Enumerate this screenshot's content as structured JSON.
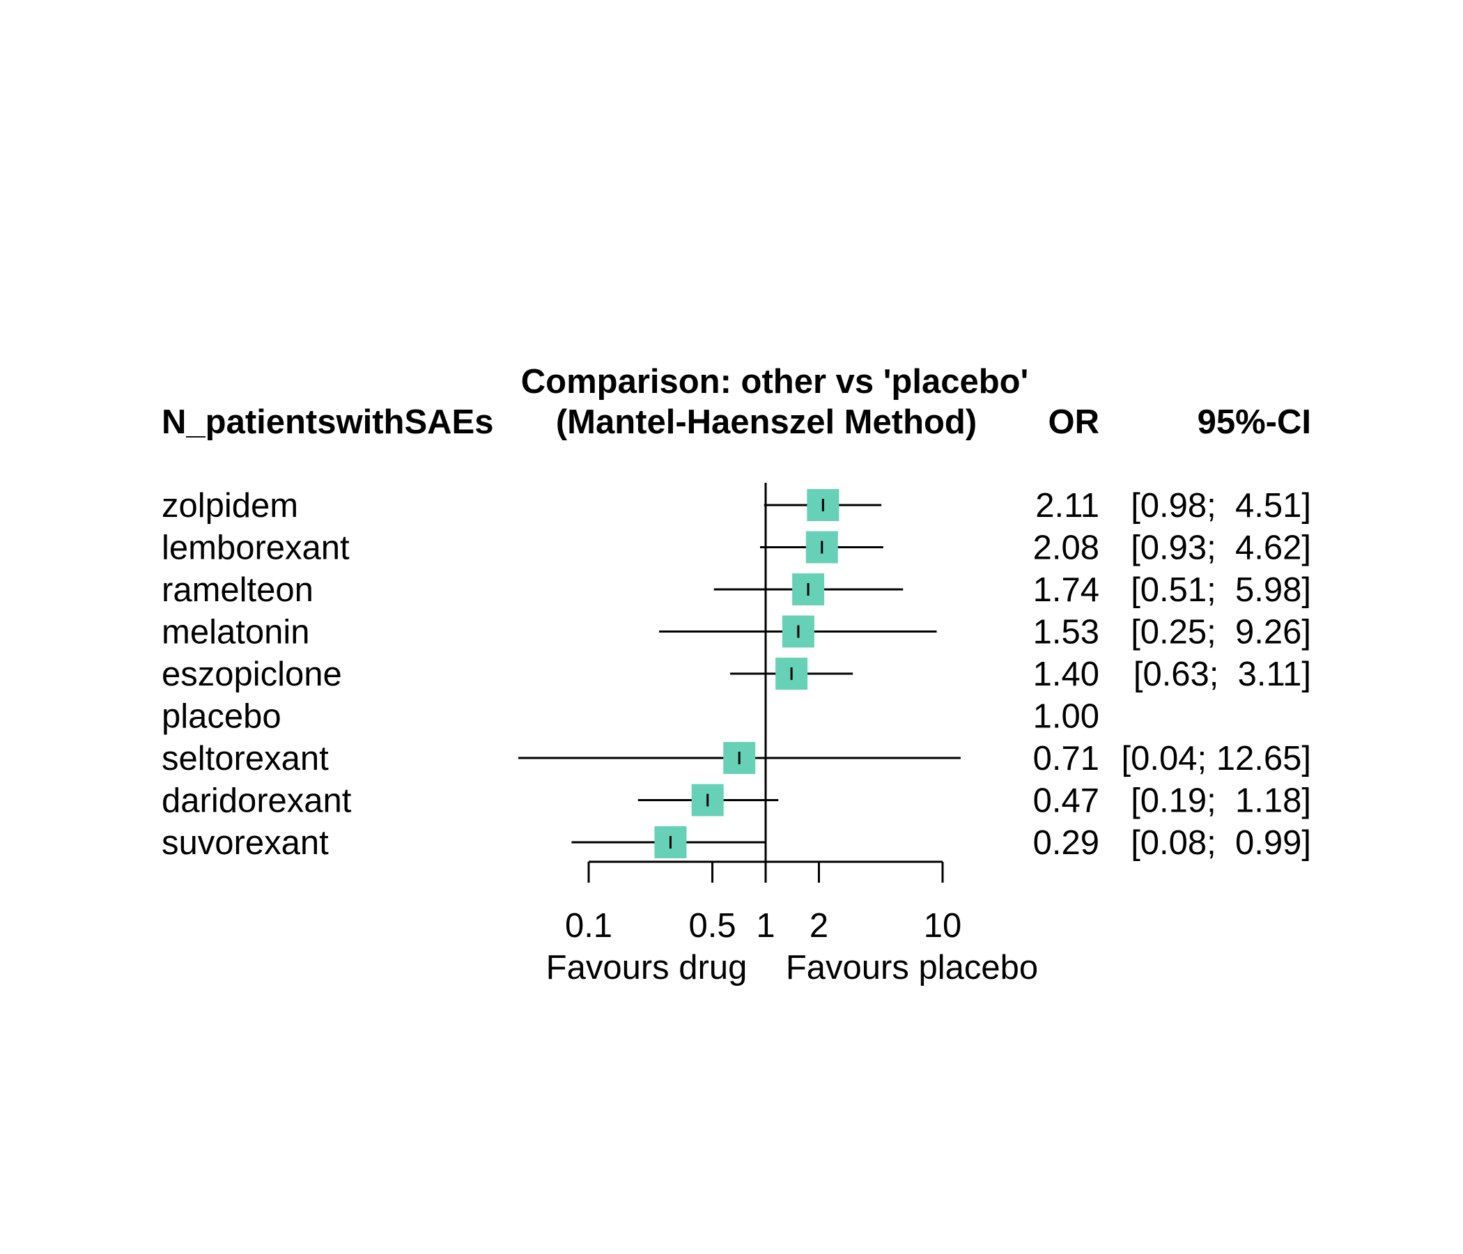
{
  "chart_data": {
    "type": "forest",
    "title": "Comparison: other vs 'placebo'",
    "subtitle": "(Mantel-Haenszel Method)",
    "column_headers": {
      "treatment": "N_patientswithSAEs",
      "estimate": "OR",
      "ci": "95%-CI"
    },
    "x_scale": "log",
    "xlim": [
      0.1,
      10
    ],
    "ticks": [
      {
        "value": 0.1,
        "label": "0.1"
      },
      {
        "value": 0.5,
        "label": "0.5"
      },
      {
        "value": 1,
        "label": "1"
      },
      {
        "value": 2,
        "label": "2"
      },
      {
        "value": 10,
        "label": "10"
      }
    ],
    "reference_line": 1,
    "favours_left": "Favours drug",
    "favours_right": "Favours placebo",
    "marker_color": "#66d1b6",
    "rows": [
      {
        "treatment": "zolpidem",
        "or": 2.11,
        "lower": 0.98,
        "upper": 4.51,
        "or_text": "2.11",
        "ci_text": "[0.98;  4.51]"
      },
      {
        "treatment": "lemborexant",
        "or": 2.08,
        "lower": 0.93,
        "upper": 4.62,
        "or_text": "2.08",
        "ci_text": "[0.93;  4.62]"
      },
      {
        "treatment": "ramelteon",
        "or": 1.74,
        "lower": 0.51,
        "upper": 5.98,
        "or_text": "1.74",
        "ci_text": "[0.51;  5.98]"
      },
      {
        "treatment": "melatonin",
        "or": 1.53,
        "lower": 0.25,
        "upper": 9.26,
        "or_text": "1.53",
        "ci_text": "[0.25;  9.26]"
      },
      {
        "treatment": "eszopiclone",
        "or": 1.4,
        "lower": 0.63,
        "upper": 3.11,
        "or_text": "1.40",
        "ci_text": "[0.63;  3.11]"
      },
      {
        "treatment": "placebo",
        "or": 1.0,
        "lower": null,
        "upper": null,
        "or_text": "1.00",
        "ci_text": ""
      },
      {
        "treatment": "seltorexant",
        "or": 0.71,
        "lower": 0.04,
        "upper": 12.65,
        "or_text": "0.71",
        "ci_text": "[0.04; 12.65]"
      },
      {
        "treatment": "daridorexant",
        "or": 0.47,
        "lower": 0.19,
        "upper": 1.18,
        "or_text": "0.47",
        "ci_text": "[0.19;  1.18]"
      },
      {
        "treatment": "suvorexant",
        "or": 0.29,
        "lower": 0.08,
        "upper": 0.99,
        "or_text": "0.29",
        "ci_text": "[0.08;  0.99]"
      }
    ]
  }
}
